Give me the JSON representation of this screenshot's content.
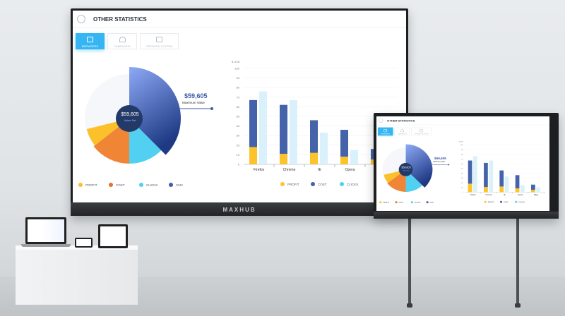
{
  "header": {
    "title": "OTHER STATISTICS",
    "icon": "pie-chart-icon"
  },
  "tabs": [
    {
      "label": "BROWSERS",
      "icon": "browser-window-icon",
      "active": true
    },
    {
      "label": "CAMPAIGNS",
      "icon": "rocket-icon",
      "active": false
    },
    {
      "label": "OPERATIN SYSTEM",
      "icon": "windows-icon",
      "active": false
    }
  ],
  "pie": {
    "center_value": "$59,605",
    "center_label": "Value Set",
    "annotation_value": "$59,605",
    "annotation_label": "Maximum Value",
    "legend": [
      {
        "label": "PROFIT",
        "color": "#fcc12a"
      },
      {
        "label": "COST",
        "color": "#ef8535"
      },
      {
        "label": "CLICKS",
        "color": "#51d0f2"
      },
      {
        "label": "CMV",
        "color": "#3f5bab"
      }
    ]
  },
  "chart_data": {
    "type": "bar",
    "ylabel": "$ USD",
    "ylim": [
      0,
      100
    ],
    "yticks": [
      "0",
      "10",
      "20",
      "30",
      "40",
      "50",
      "60",
      "70",
      "80",
      "90",
      "100"
    ],
    "categories": [
      "Firefox",
      "Chrome",
      "IE",
      "Opera",
      "Edge"
    ],
    "stacked_group": [
      "PROFIT",
      "COST"
    ],
    "series": [
      {
        "name": "PROFIT",
        "color": "#fcc42a",
        "values": [
          18,
          11,
          12,
          8,
          5
        ]
      },
      {
        "name": "COST",
        "color": "#4463aa",
        "values": [
          49,
          51,
          34,
          28,
          11
        ]
      },
      {
        "name": "CLICKS",
        "color": "#d9f1fa",
        "values": [
          76,
          67,
          33,
          15,
          10
        ]
      }
    ],
    "legend": [
      {
        "label": "PROFIT",
        "color": "#fcc42a"
      },
      {
        "label": "COST",
        "color": "#4463aa"
      },
      {
        "label": "CLICKS",
        "color": "#51d0f2"
      }
    ],
    "grid": true
  },
  "device": {
    "brand": "MAXHUB"
  }
}
